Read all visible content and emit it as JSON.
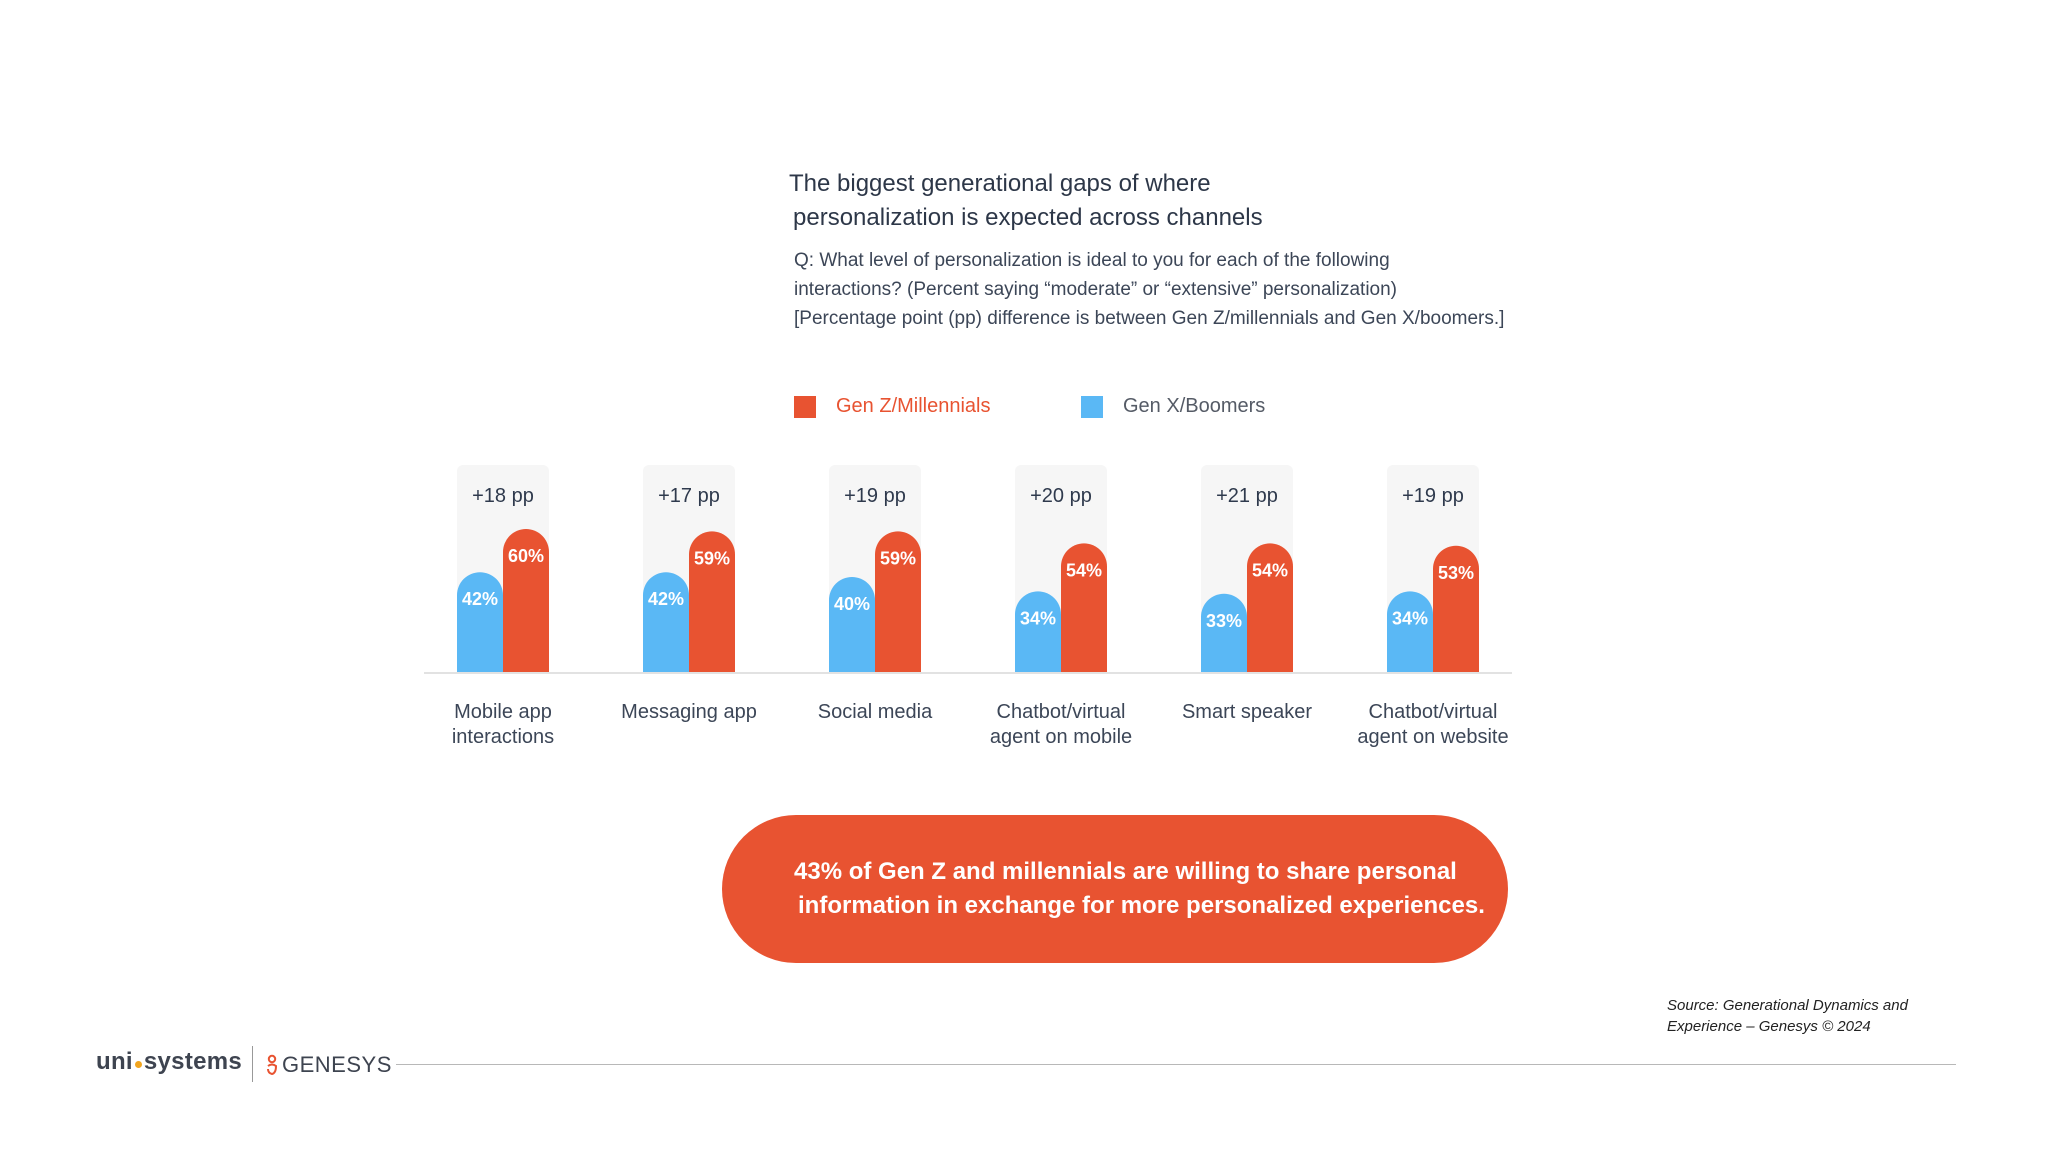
{
  "header": {
    "title_line1": "The biggest generational gaps of where",
    "title_line2": "personalization is expected across channels",
    "question_line1": "Q: What level of personalization is ideal to you for each of the following",
    "question_line2": "interactions? (Percent saying “moderate” or “extensive” personalization)",
    "question_line3": "[Percentage point (pp) difference is between Gen Z/millennials and Gen X/boomers.]"
  },
  "colors": {
    "gen_z": "#e85331",
    "gen_x": "#5ab8f5",
    "column_bg": "#f6f6f6",
    "axis": "#e2e2e2"
  },
  "chart_data": {
    "type": "bar",
    "categories": [
      [
        "Mobile app",
        "interactions"
      ],
      [
        "Messaging app"
      ],
      [
        "Social media"
      ],
      [
        "Chatbot/virtual",
        "agent on mobile"
      ],
      [
        "Smart speaker"
      ],
      [
        "Chatbot/virtual",
        "agent on website"
      ]
    ],
    "series": [
      {
        "name": "Gen X/Boomers",
        "values": [
          42,
          42,
          40,
          34,
          33,
          34
        ],
        "labels": [
          "42%",
          "42%",
          "40%",
          "34%",
          "33%",
          "34%"
        ]
      },
      {
        "name": "Gen Z/Millennials",
        "values": [
          60,
          59,
          59,
          54,
          54,
          53
        ],
        "labels": [
          "60%",
          "59%",
          "59%",
          "54%",
          "54%",
          "53%"
        ]
      }
    ],
    "differences": [
      "+18 pp",
      "+17 pp",
      "+19 pp",
      "+20 pp",
      "+21 pp",
      "+19 pp"
    ],
    "ylim": [
      0,
      100
    ],
    "legend_position": "top"
  },
  "callout": {
    "line1": "43% of Gen Z and millennials are willing to share personal",
    "line2": "information in exchange for more personalized experiences."
  },
  "source": {
    "line1": "Source: Generational Dynamics and",
    "line2": "Experience – Genesys © 2024"
  },
  "footer": {
    "logo_uni_a": "uni",
    "logo_uni_b": "systems",
    "logo_genesys": "GENESYS"
  }
}
